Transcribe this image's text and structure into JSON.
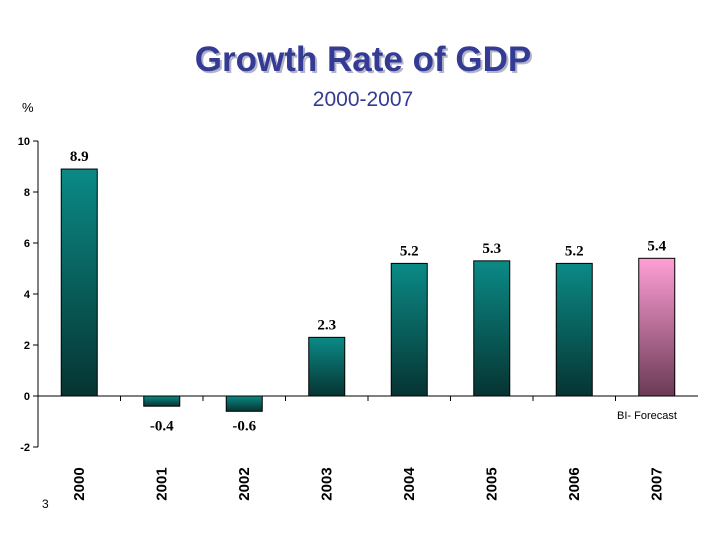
{
  "chart_data": {
    "type": "bar",
    "title": "Growth Rate of GDP",
    "subtitle": "2000-2007",
    "ylabel": "%",
    "categories": [
      "2000",
      "2001",
      "2002",
      "2003",
      "2004",
      "2005",
      "2006",
      "2007"
    ],
    "values": [
      8.9,
      -0.4,
      -0.6,
      2.3,
      5.2,
      5.3,
      5.2,
      5.4
    ],
    "value_labels": [
      "8.9",
      "-0.4",
      "-0.6",
      "2.3",
      "5.2",
      "5.3",
      "5.2",
      "5.4"
    ],
    "forecast_index": 7,
    "ylim": [
      -2,
      10
    ],
    "yticks": [
      -2,
      0,
      2,
      4,
      6,
      8,
      10
    ],
    "grid": false,
    "annotation": "BI- Forecast",
    "colors": {
      "actual_top": "#0b8a86",
      "actual_bottom": "#063432",
      "forecast_top": "#ff9fd6",
      "forecast_bottom": "#6a3a55",
      "title": "#343b94"
    }
  },
  "page_number": "3"
}
